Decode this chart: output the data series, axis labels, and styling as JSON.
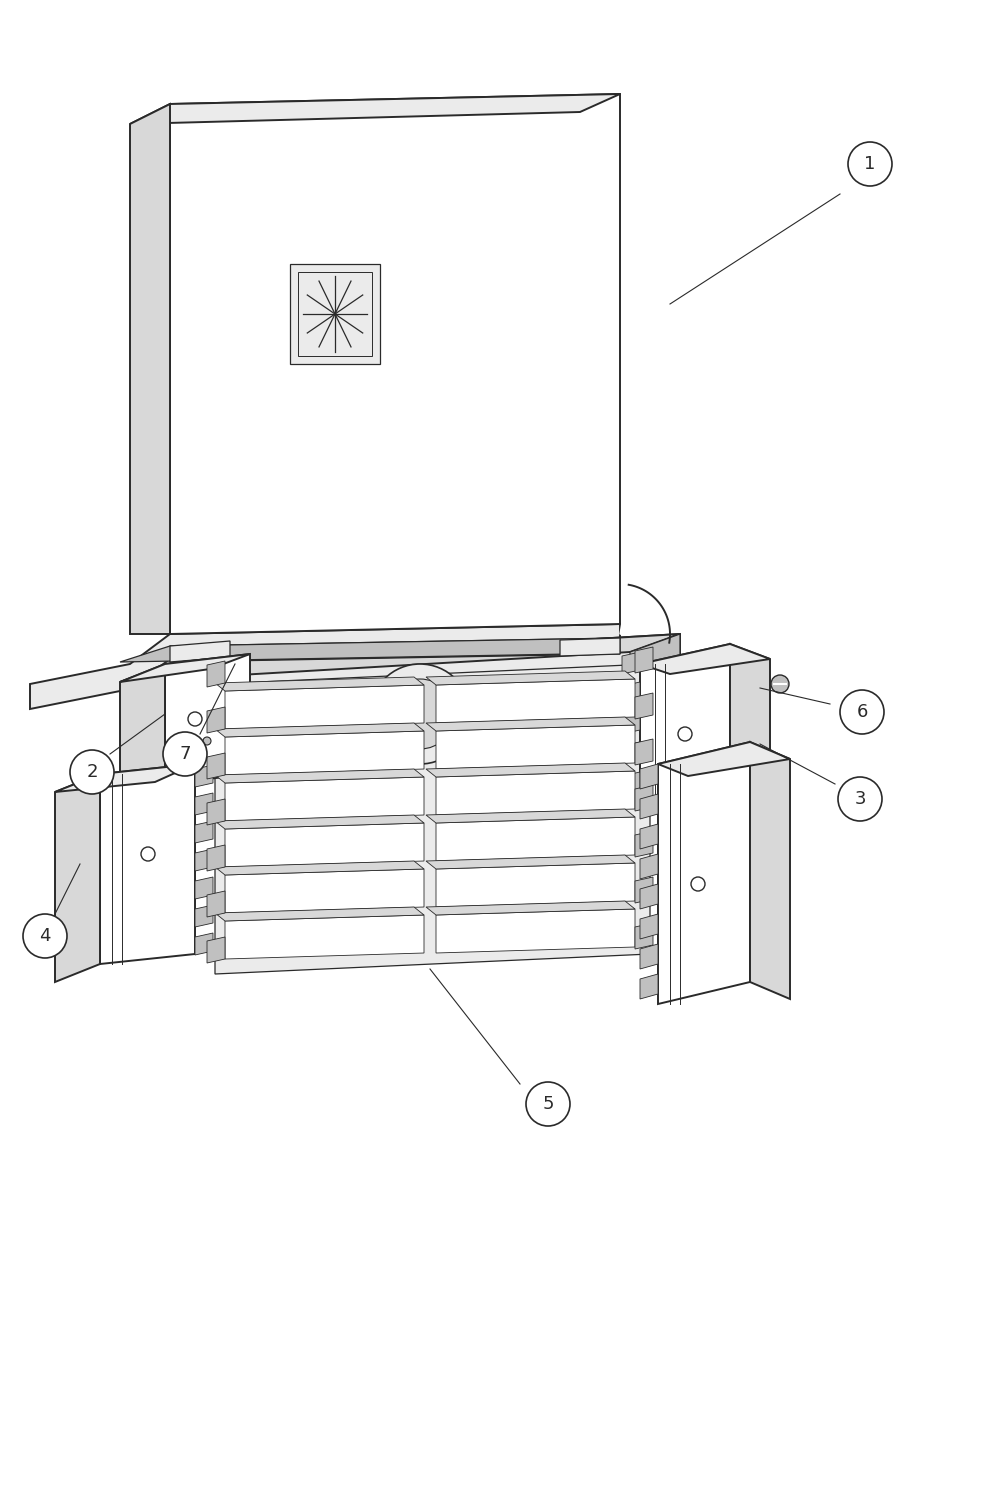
{
  "background_color": "#ffffff",
  "line_color": "#2a2a2a",
  "face_white": "#ffffff",
  "face_light": "#ebebeb",
  "face_mid": "#d8d8d8",
  "face_dark": "#c0c0c0",
  "face_black": "#222222",
  "figsize": [
    10.0,
    15.04
  ],
  "dpi": 100
}
